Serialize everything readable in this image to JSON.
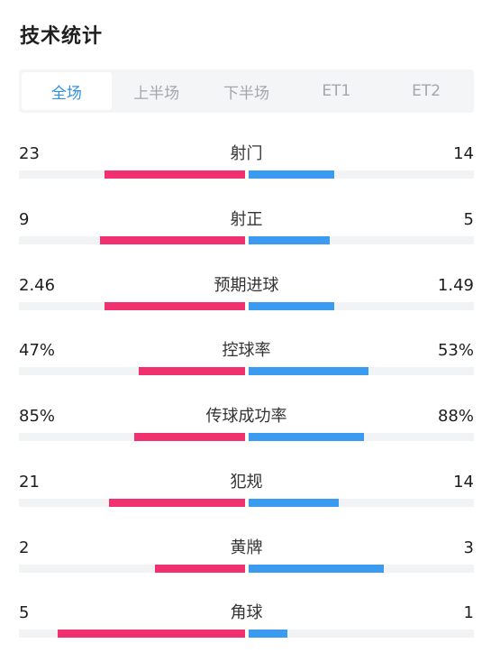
{
  "title": "技术统计",
  "tabs": [
    {
      "label": "全场",
      "active": true
    },
    {
      "label": "上半场",
      "active": false
    },
    {
      "label": "下半场",
      "active": false
    },
    {
      "label": "ET1",
      "active": false
    },
    {
      "label": "ET2",
      "active": false
    }
  ],
  "colors": {
    "home": "#f0306f",
    "away": "#3a9bf0",
    "active_tab": "#2f8fe6"
  },
  "stats": [
    {
      "label": "射门",
      "home": "23",
      "away": "14",
      "home_share": 0.62,
      "away_share": 0.38
    },
    {
      "label": "射正",
      "home": "9",
      "away": "5",
      "home_share": 0.64,
      "away_share": 0.36
    },
    {
      "label": "预期进球",
      "home": "2.46",
      "away": "1.49",
      "home_share": 0.62,
      "away_share": 0.38
    },
    {
      "label": "控球率",
      "home": "47%",
      "away": "53%",
      "home_share": 0.47,
      "away_share": 0.53
    },
    {
      "label": "传球成功率",
      "home": "85%",
      "away": "88%",
      "home_share": 0.49,
      "away_share": 0.51
    },
    {
      "label": "犯规",
      "home": "21",
      "away": "14",
      "home_share": 0.6,
      "away_share": 0.4
    },
    {
      "label": "黄牌",
      "home": "2",
      "away": "3",
      "home_share": 0.4,
      "away_share": 0.6
    },
    {
      "label": "角球",
      "home": "5",
      "away": "1",
      "home_share": 0.83,
      "away_share": 0.17
    }
  ]
}
